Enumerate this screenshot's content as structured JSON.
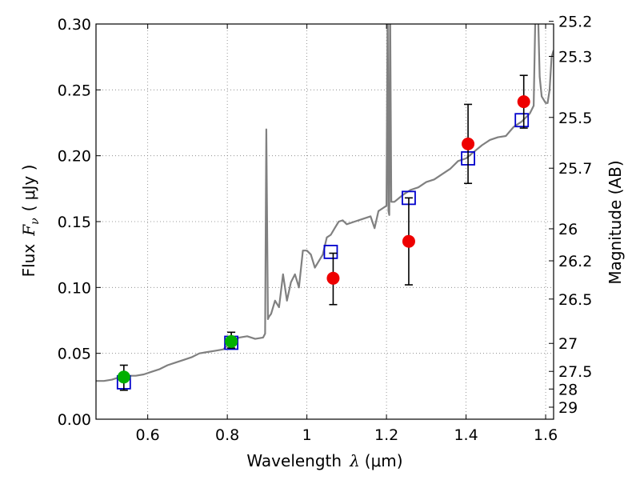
{
  "chart_data": {
    "type": "scatter",
    "xlabel_text": "Wavelength",
    "xlabel_symbol": "λ",
    "xlabel_unit": "(μm)",
    "ylabel_text": "Flux",
    "ylabel_symbol": "F",
    "ylabel_subscript": "ν",
    "ylabel_unit": "( μJy )",
    "y2label": "Magnitude (AB)",
    "xlim": [
      0.47,
      1.62
    ],
    "ylim": [
      0.0,
      0.3
    ],
    "grid": true,
    "x_ticks": [
      0.6,
      0.8,
      1.0,
      1.2,
      1.4,
      1.6
    ],
    "x_tick_labels": [
      "0.6",
      "0.8",
      "1",
      "1.2",
      "1.4",
      "1.6"
    ],
    "y_ticks": [
      0.0,
      0.05,
      0.1,
      0.15,
      0.2,
      0.25,
      0.3
    ],
    "y_tick_labels": [
      "0.00",
      "0.05",
      "0.10",
      "0.15",
      "0.20",
      "0.25",
      "0.30"
    ],
    "y2_ticks": [
      25.2,
      25.3,
      25.5,
      25.7,
      26,
      26.2,
      26.5,
      27,
      27.5,
      28,
      29
    ],
    "y2_tick_labels": [
      "25.2",
      "25.3",
      "25.5",
      "25.7",
      "26",
      "26.2",
      "26.5",
      "27",
      "27.5",
      "28",
      "29"
    ],
    "colors": {
      "spectrum": "#808080",
      "photometry_optical": "#00b000",
      "photometry_nir": "#ee0000",
      "model_photometry": "#0000cc",
      "error_bar": "#000000",
      "grid": "#7f7f7f"
    },
    "series": [
      {
        "name": "model spectrum",
        "kind": "line",
        "x": [
          0.47,
          0.49,
          0.51,
          0.53,
          0.55,
          0.57,
          0.59,
          0.61,
          0.63,
          0.65,
          0.67,
          0.69,
          0.71,
          0.73,
          0.75,
          0.77,
          0.79,
          0.81,
          0.83,
          0.85,
          0.87,
          0.89,
          0.895,
          0.898,
          0.902,
          0.905,
          0.91,
          0.92,
          0.93,
          0.94,
          0.95,
          0.96,
          0.97,
          0.98,
          0.99,
          1.0,
          1.01,
          1.02,
          1.03,
          1.04,
          1.05,
          1.06,
          1.07,
          1.08,
          1.09,
          1.1,
          1.12,
          1.14,
          1.16,
          1.17,
          1.18,
          1.19,
          1.2,
          1.203,
          1.205,
          1.207,
          1.209,
          1.212,
          1.22,
          1.24,
          1.26,
          1.28,
          1.3,
          1.32,
          1.34,
          1.36,
          1.38,
          1.4,
          1.42,
          1.44,
          1.46,
          1.48,
          1.5,
          1.52,
          1.54,
          1.56,
          1.57,
          1.575,
          1.58,
          1.585,
          1.59,
          1.6,
          1.605,
          1.61,
          1.615,
          1.62
        ],
        "y": [
          0.029,
          0.029,
          0.03,
          0.032,
          0.033,
          0.033,
          0.034,
          0.036,
          0.038,
          0.041,
          0.043,
          0.045,
          0.047,
          0.05,
          0.051,
          0.052,
          0.053,
          0.059,
          0.062,
          0.063,
          0.061,
          0.062,
          0.065,
          0.22,
          0.076,
          0.078,
          0.08,
          0.09,
          0.085,
          0.11,
          0.09,
          0.104,
          0.11,
          0.1,
          0.128,
          0.128,
          0.125,
          0.115,
          0.12,
          0.125,
          0.138,
          0.14,
          0.145,
          0.15,
          0.151,
          0.148,
          0.15,
          0.152,
          0.154,
          0.145,
          0.158,
          0.16,
          0.162,
          0.32,
          0.158,
          0.155,
          0.32,
          0.165,
          0.165,
          0.17,
          0.174,
          0.176,
          0.18,
          0.182,
          0.186,
          0.19,
          0.196,
          0.198,
          0.203,
          0.208,
          0.212,
          0.214,
          0.215,
          0.222,
          0.226,
          0.232,
          0.238,
          0.32,
          0.32,
          0.26,
          0.245,
          0.24,
          0.24,
          0.25,
          0.275,
          0.28
        ]
      },
      {
        "name": "observed optical",
        "kind": "points",
        "x": [
          0.54,
          0.81
        ],
        "y": [
          0.032,
          0.059
        ],
        "yerr_low": [
          0.022,
          0.054
        ],
        "yerr_high": [
          0.041,
          0.066
        ]
      },
      {
        "name": "observed near-IR",
        "kind": "points",
        "x": [
          1.066,
          1.256,
          1.405,
          1.545
        ],
        "y": [
          0.107,
          0.135,
          0.209,
          0.241
        ],
        "yerr_low": [
          0.087,
          0.102,
          0.179,
          0.221
        ],
        "yerr_high": [
          0.126,
          0.168,
          0.239,
          0.261
        ]
      },
      {
        "name": "model photometry",
        "kind": "squares",
        "x": [
          0.54,
          0.81,
          1.06,
          1.256,
          1.405,
          1.54
        ],
        "y": [
          0.028,
          0.058,
          0.127,
          0.168,
          0.198,
          0.227
        ]
      }
    ]
  }
}
